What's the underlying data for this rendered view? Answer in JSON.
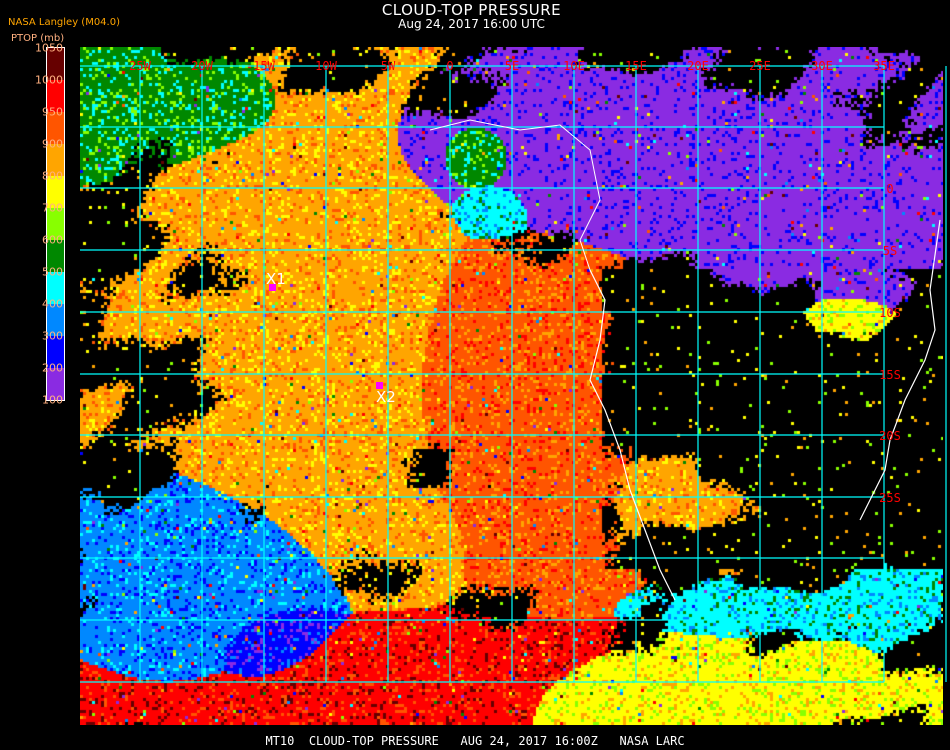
{
  "header": {
    "title": "CLOUD-TOP PRESSURE",
    "datetime": "Aug 24, 2017 16:00 UTC",
    "source": "NASA Langley (M04.0)"
  },
  "legend": {
    "label": "PTOP (mb)",
    "ticks": [
      "1050",
      "1000",
      "950",
      "900",
      "800",
      "700",
      "600",
      "500",
      "400",
      "300",
      "200",
      "100"
    ],
    "colors": [
      "#660000",
      "#ff0000",
      "#ff5500",
      "#ffa500",
      "#ffff00",
      "#88ff00",
      "#008800",
      "#00ffff",
      "#0088ff",
      "#0000ff",
      "#8a2be2"
    ]
  },
  "map": {
    "longitude_labels": [
      "25W",
      "20W",
      "15W",
      "10W",
      "5W",
      "0",
      "5E",
      "10E",
      "15E",
      "20E",
      "25E",
      "30E",
      "35E"
    ],
    "latitude_labels": [
      "0",
      "5S",
      "10S",
      "15S",
      "20S",
      "25S"
    ],
    "grid_color": "#00ffff",
    "label_color": "#ff0000",
    "coastline_color": "#ffffff",
    "markers": [
      {
        "label": "X1",
        "color": "#ff00ff"
      },
      {
        "label": "X2",
        "color": "#ff00ff"
      }
    ]
  },
  "footer": {
    "product": "MT10",
    "title": "CLOUD-TOP PRESSURE",
    "datetime": "AUG 24, 2017 16:00Z",
    "agency": "NASA LARC"
  }
}
